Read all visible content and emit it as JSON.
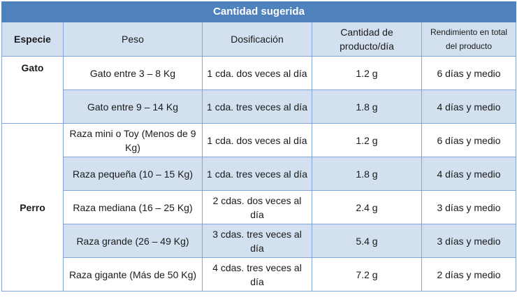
{
  "title": "Cantidad sugerida",
  "headers": {
    "especie": "Especie",
    "peso": "Peso",
    "dosificacion": "Dosificación",
    "cantidad": "Cantidad de producto/día",
    "rendimiento": "Rendimiento en total del producto"
  },
  "species": {
    "gato": "Gato",
    "perro": "Perro"
  },
  "rows": [
    {
      "peso": "Gato entre 3 – 8 Kg",
      "dosificacion": "1 cda. dos veces al día",
      "cantidad": "1.2 g",
      "rendimiento": "6 días  y medio"
    },
    {
      "peso": "Gato entre 9 – 14 Kg",
      "dosificacion": "1 cda. tres veces al día",
      "cantidad": "1.8 g",
      "rendimiento": "4 días  y medio"
    },
    {
      "peso": "Raza mini o Toy (Menos de 9 Kg)",
      "dosificacion": "1 cda. dos veces al día",
      "cantidad": "1.2 g",
      "rendimiento": "6 días  y medio"
    },
    {
      "peso": "Raza pequeña (10 – 15 Kg)",
      "dosificacion": "1 cda. tres veces al día",
      "cantidad": "1.8 g",
      "rendimiento": "4 días  y medio"
    },
    {
      "peso": "Raza mediana (16 – 25 Kg)",
      "dosificacion": "2 cdas. dos veces al día",
      "cantidad": "2.4 g",
      "rendimiento": "3 días  y medio"
    },
    {
      "peso": "Raza grande (26 – 49 Kg)",
      "dosificacion": "3 cdas. tres veces al día",
      "cantidad": "5.4 g",
      "rendimiento": "3 días  y medio"
    },
    {
      "peso": "Raza gigante (Más de 50 Kg)",
      "dosificacion": "4 cdas. tres veces al día",
      "cantidad": "7.2 g",
      "rendimiento": "2 días  y medio"
    }
  ],
  "colors": {
    "header_bar": "#4f81bd",
    "row_shade": "#d3e0f0",
    "border": "#7fa6d6"
  }
}
